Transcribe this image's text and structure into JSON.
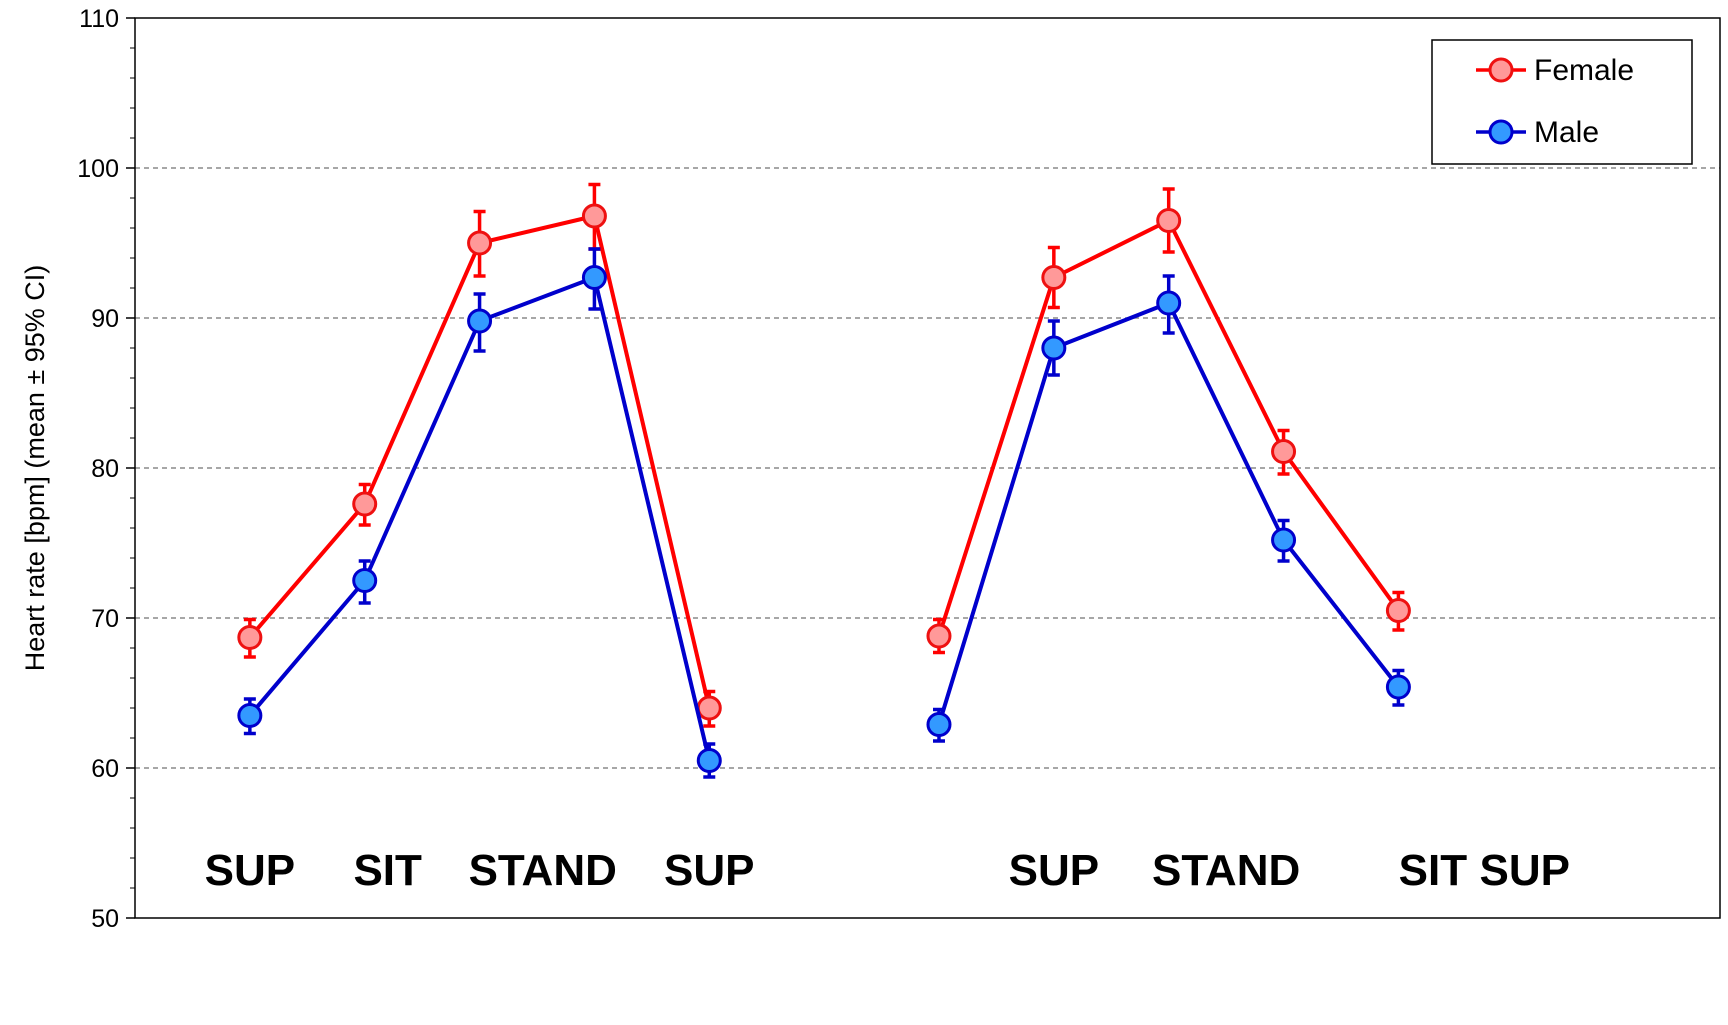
{
  "chart_data": {
    "type": "line",
    "title": "",
    "xlabel": "",
    "ylabel": "Heart rate [bpm] (mean ± 95% CI)",
    "ylim": [
      50,
      110
    ],
    "yticks": [
      50,
      60,
      70,
      80,
      90,
      100,
      110
    ],
    "grid": {
      "y_major": true,
      "x": false
    },
    "legend_placement": "top-right",
    "x": [
      1,
      2,
      3,
      4,
      5,
      7,
      8,
      9,
      10,
      11
    ],
    "xlim": [
      0,
      13.8
    ],
    "position_labels": [
      {
        "text": "SUP",
        "x": 1
      },
      {
        "text": "SIT",
        "x": 2.2
      },
      {
        "text": "STAND",
        "x": 3.55
      },
      {
        "text": "SUP",
        "x": 5
      },
      {
        "text": "SUP",
        "x": 8
      },
      {
        "text": "STAND",
        "x": 9.5
      },
      {
        "text": "SIT",
        "x": 11.3
      },
      {
        "text": "SUP",
        "x": 12.1
      }
    ],
    "groups": [
      [
        0,
        1,
        2,
        3,
        4
      ],
      [
        5,
        6,
        7,
        8,
        9
      ]
    ],
    "series": [
      {
        "name": "Female",
        "line_color": "#ff0000",
        "marker_fill": "#ff9999",
        "marker_edge": "#ee1111",
        "values": [
          68.7,
          77.6,
          95.0,
          96.8,
          64.0,
          68.8,
          92.7,
          96.5,
          81.1,
          70.5
        ],
        "ci_low": [
          67.4,
          76.2,
          92.8,
          94.6,
          62.8,
          67.7,
          90.7,
          94.4,
          79.6,
          69.2
        ],
        "ci_high": [
          69.9,
          78.9,
          97.1,
          98.9,
          65.1,
          69.9,
          94.7,
          98.6,
          82.5,
          71.7
        ]
      },
      {
        "name": "Male",
        "line_color": "#0000cc",
        "marker_fill": "#3399ff",
        "marker_edge": "#0000cc",
        "values": [
          63.5,
          72.5,
          89.8,
          92.7,
          60.5,
          62.9,
          88.0,
          91.0,
          75.2,
          65.4
        ],
        "ci_low": [
          62.3,
          71.0,
          87.8,
          90.6,
          59.4,
          61.8,
          86.2,
          89.0,
          73.8,
          64.2
        ],
        "ci_high": [
          64.6,
          73.8,
          91.6,
          94.6,
          61.6,
          63.9,
          89.8,
          92.8,
          76.5,
          66.5
        ]
      }
    ]
  }
}
